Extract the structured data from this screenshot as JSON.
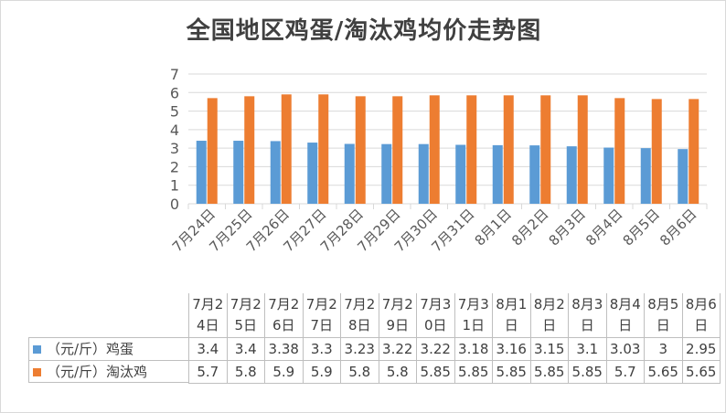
{
  "chart_data": {
    "type": "bar",
    "title": "全国地区鸡蛋/淘汰鸡均价走势图",
    "categories": [
      "7月24日",
      "7月25日",
      "7月26日",
      "7月27日",
      "7月28日",
      "7月29日",
      "7月30日",
      "7月31日",
      "8月1日",
      "8月2日",
      "8月3日",
      "8月4日",
      "8月5日",
      "8月6日"
    ],
    "table_headers": [
      "7月2\n4日",
      "7月2\n5日",
      "7月2\n6日",
      "7月2\n7日",
      "7月2\n8日",
      "7月2\n9日",
      "7月3\n0日",
      "7月3\n1日",
      "8月1\n日",
      "8月2\n日",
      "8月3\n日",
      "8月4\n日",
      "8月5\n日",
      "8月6\n日"
    ],
    "series": [
      {
        "name": "（元/斤）鸡蛋",
        "color": "#5b9bd5",
        "values": [
          3.4,
          3.4,
          3.38,
          3.3,
          3.23,
          3.22,
          3.22,
          3.18,
          3.16,
          3.15,
          3.1,
          3.03,
          3,
          2.95
        ]
      },
      {
        "name": "（元/斤）淘汰鸡",
        "color": "#ed7d31",
        "values": [
          5.7,
          5.8,
          5.9,
          5.9,
          5.8,
          5.8,
          5.85,
          5.85,
          5.85,
          5.85,
          5.85,
          5.7,
          5.65,
          5.65
        ]
      }
    ],
    "ylim": [
      0,
      7
    ],
    "yticks": [
      "0",
      "1",
      "2",
      "3",
      "4",
      "5",
      "6",
      "7"
    ],
    "grid": true,
    "legend": "bottom-left, in data table"
  }
}
